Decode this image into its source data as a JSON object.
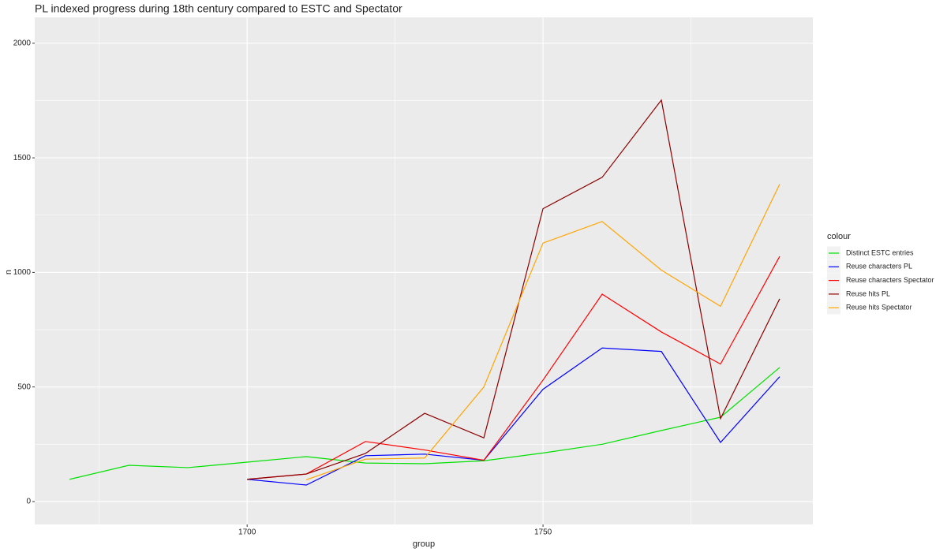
{
  "chart_data": {
    "type": "line",
    "title": "PL indexed progress during 18th century compared to ESTC and Spectator",
    "x_label": "group",
    "y_label": "n",
    "legend_title": "colour",
    "x": [
      1670,
      1680,
      1690,
      1700,
      1710,
      1720,
      1730,
      1740,
      1750,
      1760,
      1770,
      1780,
      1790
    ],
    "series": [
      {
        "name": "Distinct ESTC entries",
        "color": "#00e000",
        "values": [
          97,
          158,
          148,
          172,
          196,
          168,
          165,
          178,
          212,
          250,
          310,
          368,
          585
        ]
      },
      {
        "name": "Reuse characters PL",
        "color": "#0000ff",
        "values": [
          null,
          null,
          null,
          97,
          72,
          200,
          207,
          180,
          490,
          670,
          655,
          258,
          545
        ]
      },
      {
        "name": "Reuse characters Spectator",
        "color": "#ff0000",
        "values": [
          null,
          null,
          null,
          97,
          120,
          262,
          225,
          180,
          530,
          905,
          740,
          600,
          1070
        ]
      },
      {
        "name": "Reuse hits PL",
        "color": "#8b0000",
        "values": [
          null,
          null,
          null,
          97,
          120,
          210,
          385,
          278,
          1278,
          1415,
          1752,
          362,
          885
        ]
      },
      {
        "name": "Reuse hits Spectator",
        "color": "#ffa500",
        "values": [
          null,
          null,
          null,
          null,
          95,
          185,
          190,
          500,
          1128,
          1222,
          1010,
          852,
          1385
        ]
      }
    ],
    "xlim": [
      1664.1,
      1795.6
    ],
    "xticks": [
      1700,
      1750
    ],
    "ylim": [
      -100,
      2113
    ],
    "yticks": [
      0,
      500,
      1000,
      1500,
      2000
    ],
    "grid": true,
    "legend_position": "right"
  }
}
